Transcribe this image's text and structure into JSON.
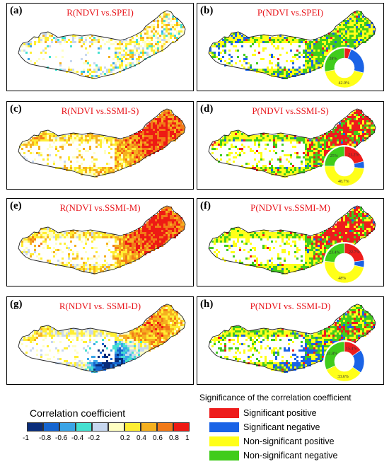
{
  "panels": [
    {
      "letter": "(a)",
      "title": "R(NDVI vs.SPEI)",
      "kind": "R",
      "pattern": "a"
    },
    {
      "letter": "(b)",
      "title": "P(NDVI vs.SPEI)",
      "kind": "P",
      "pattern": "b",
      "pie_values": [
        5.5,
        23.6,
        42.9,
        28.0
      ],
      "pie_labels": [
        "",
        "",
        "42.9%",
        "28%"
      ]
    },
    {
      "letter": "(c)",
      "title": "R(NDVI vs.SSMI-S)",
      "kind": "R",
      "pattern": "c"
    },
    {
      "letter": "(d)",
      "title": "P(NDVI vs.SSMI-S)",
      "kind": "P",
      "pattern": "d",
      "pie_values": [
        21.2,
        5.8,
        48.7,
        25.0
      ],
      "pie_labels": [
        "21.2%",
        "",
        "48.7%",
        "25%"
      ]
    },
    {
      "letter": "(e)",
      "title": "R(NDVI vs.SSMI-M)",
      "kind": "R",
      "pattern": "e"
    },
    {
      "letter": "(f)",
      "title": "P(NDVI vs.SSMI-M)",
      "kind": "P",
      "pattern": "f",
      "pie_values": [
        22.7,
        5.6,
        48.0,
        23.4
      ],
      "pie_labels": [
        "22.7%",
        "",
        "48%",
        "23.4%"
      ]
    },
    {
      "letter": "(g)",
      "title": "R(NDVI vs. SSMI-D)",
      "kind": "R",
      "pattern": "g"
    },
    {
      "letter": "(h)",
      "title": "P(NDVI vs. SSMI-D)",
      "kind": "P",
      "pattern": "h",
      "pie_values": [
        15.4,
        19.2,
        33.6,
        31.8
      ],
      "pie_labels": [
        "15.4%",
        "",
        "33.6%",
        "31.8%"
      ]
    }
  ],
  "colorbar": {
    "title": "Correlation coefficient",
    "ticks": [
      "-1",
      "-0.8",
      "-0.6",
      "-0.4",
      "-0.2",
      "0.2",
      "0.4",
      "0.6",
      "0.8",
      "1"
    ],
    "colors": [
      "#0a2d7a",
      "#1565d0",
      "#3aa4e6",
      "#44e0d0",
      "#c7d7ef",
      "#ffffc2",
      "#ffee33",
      "#f5b01f",
      "#f27a18",
      "#ee1a14"
    ]
  },
  "significance": {
    "title": "Significance of the correlation coefficient",
    "items": [
      {
        "label": "Significant positive",
        "color": "#ee1c1c"
      },
      {
        "label": "Significant negative",
        "color": "#1a63e6"
      },
      {
        "label": "Non-significant positive",
        "color": "#ffff19"
      },
      {
        "label": "Non-significant negative",
        "color": "#40cc1c"
      }
    ]
  }
}
